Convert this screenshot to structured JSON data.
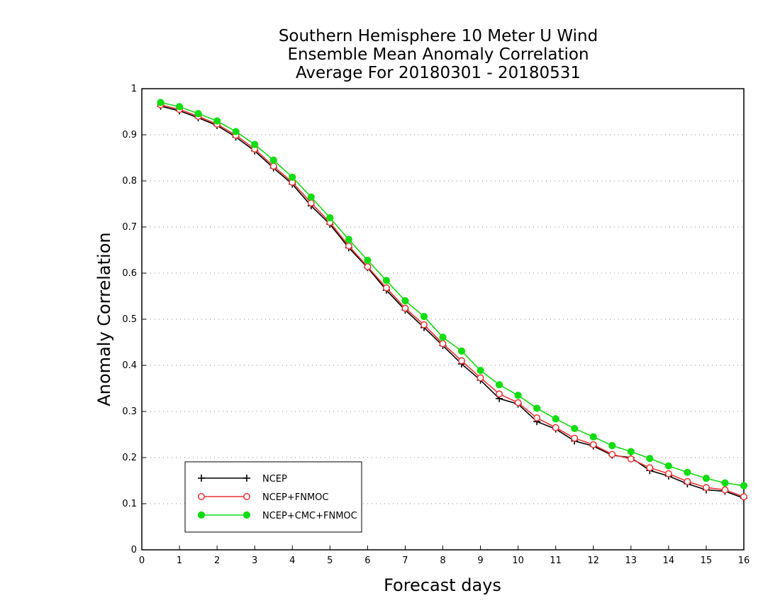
{
  "chart_data": {
    "type": "line",
    "title": [
      "Southern Hemisphere 10 Meter U Wind",
      "Ensemble Mean Anomaly Correlation",
      "Average For 20180301 - 20180531"
    ],
    "xlabel": "Forecast days",
    "ylabel": "Anomaly Correlation",
    "xlim": [
      0,
      16
    ],
    "ylim": [
      0,
      1
    ],
    "xticks": [
      "0",
      "1",
      "2",
      "3",
      "4",
      "5",
      "6",
      "7",
      "8",
      "9",
      "10",
      "11",
      "12",
      "13",
      "14",
      "15",
      "16"
    ],
    "yticks": [
      "0",
      "0.1",
      "0.2",
      "0.3",
      "0.4",
      "0.5",
      "0.6",
      "0.7",
      "0.8",
      "0.9",
      "1"
    ],
    "grid": "dotted horizontal",
    "legend_position": "bottom-left",
    "x": [
      0.5,
      1,
      1.5,
      2,
      2.5,
      3,
      3.5,
      4,
      4.5,
      5,
      5.5,
      6,
      6.5,
      7,
      7.5,
      8,
      8.5,
      9,
      9.5,
      10,
      10.5,
      11,
      11.5,
      12,
      12.5,
      13,
      13.5,
      14,
      14.5,
      15,
      15.5,
      16
    ],
    "series": [
      {
        "name": "NCEP",
        "color": "#000000",
        "marker": "plus",
        "values": [
          0.962,
          0.952,
          0.937,
          0.92,
          0.895,
          0.865,
          0.828,
          0.793,
          0.746,
          0.706,
          0.655,
          0.612,
          0.563,
          0.52,
          0.482,
          0.443,
          0.403,
          0.368,
          0.328,
          0.316,
          0.278,
          0.262,
          0.236,
          0.225,
          0.205,
          0.2,
          0.172,
          0.16,
          0.143,
          0.13,
          0.127,
          0.112
        ]
      },
      {
        "name": "NCEP+FNMOC",
        "color": "#ee3333",
        "marker": "open-circle",
        "values": [
          0.965,
          0.955,
          0.94,
          0.923,
          0.899,
          0.869,
          0.832,
          0.797,
          0.752,
          0.71,
          0.659,
          0.614,
          0.568,
          0.524,
          0.488,
          0.447,
          0.41,
          0.373,
          0.338,
          0.319,
          0.286,
          0.265,
          0.242,
          0.228,
          0.207,
          0.197,
          0.178,
          0.165,
          0.148,
          0.135,
          0.13,
          0.115
        ]
      },
      {
        "name": "NCEP+CMC+FNMOC",
        "color": "#11dd11",
        "marker": "filled-circle",
        "values": [
          0.97,
          0.961,
          0.946,
          0.93,
          0.907,
          0.879,
          0.845,
          0.808,
          0.765,
          0.72,
          0.673,
          0.628,
          0.584,
          0.54,
          0.506,
          0.461,
          0.431,
          0.389,
          0.358,
          0.335,
          0.307,
          0.284,
          0.263,
          0.245,
          0.226,
          0.213,
          0.198,
          0.182,
          0.168,
          0.155,
          0.145,
          0.139
        ]
      }
    ]
  }
}
